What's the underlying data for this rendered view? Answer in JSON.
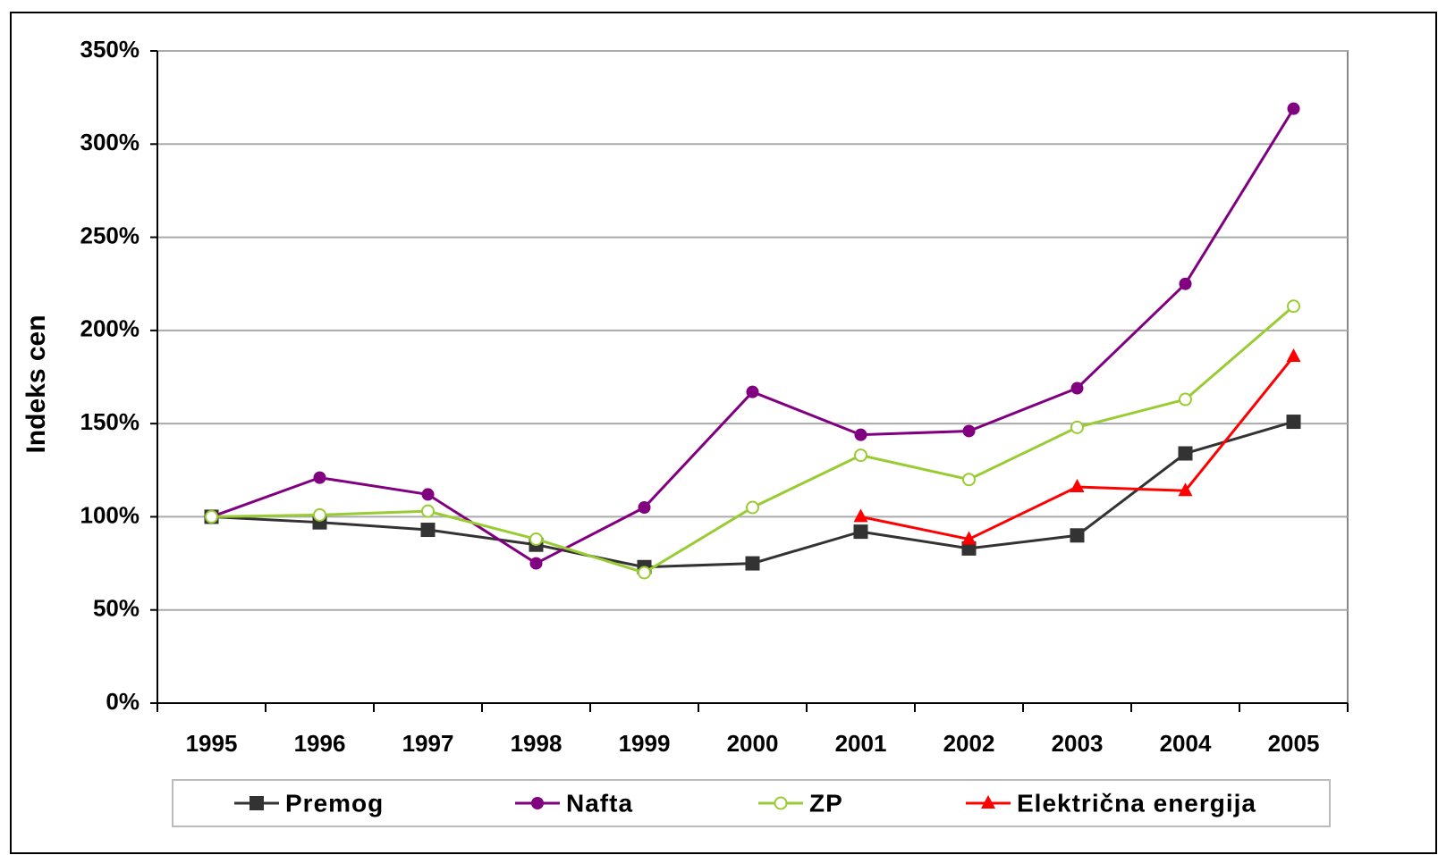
{
  "chart_data": {
    "type": "line",
    "y_label": "Indeks cen",
    "categories": [
      "1995",
      "1996",
      "1997",
      "1998",
      "1999",
      "2000",
      "2001",
      "2002",
      "2003",
      "2004",
      "2005"
    ],
    "series": [
      {
        "name": "Premog",
        "color": "#333333",
        "marker": "square",
        "values": [
          100,
          97,
          93,
          85,
          73,
          75,
          92,
          83,
          90,
          134,
          151
        ]
      },
      {
        "name": "Nafta",
        "color": "#800080",
        "marker": "circle",
        "values": [
          100,
          121,
          112,
          75,
          105,
          167,
          144,
          146,
          169,
          225,
          319
        ]
      },
      {
        "name": "ZP",
        "color": "#99cc33",
        "marker": "open-circle",
        "values": [
          100,
          101,
          103,
          88,
          70,
          105,
          133,
          120,
          148,
          163,
          213
        ]
      },
      {
        "name": "Električna energija",
        "color": "#ff0000",
        "marker": "triangle",
        "values": [
          null,
          null,
          null,
          null,
          null,
          null,
          100,
          88,
          116,
          114,
          186
        ]
      }
    ],
    "ylim": [
      0,
      350
    ],
    "yticks": [
      {
        "value": 0,
        "label": "0%"
      },
      {
        "value": 50,
        "label": "50%"
      },
      {
        "value": 100,
        "label": "100%"
      },
      {
        "value": 150,
        "label": "150%"
      },
      {
        "value": 200,
        "label": "200%"
      },
      {
        "value": 250,
        "label": "250%"
      },
      {
        "value": 300,
        "label": "300%"
      },
      {
        "value": 350,
        "label": "350%"
      }
    ],
    "grid": true,
    "legend": "bottom"
  }
}
